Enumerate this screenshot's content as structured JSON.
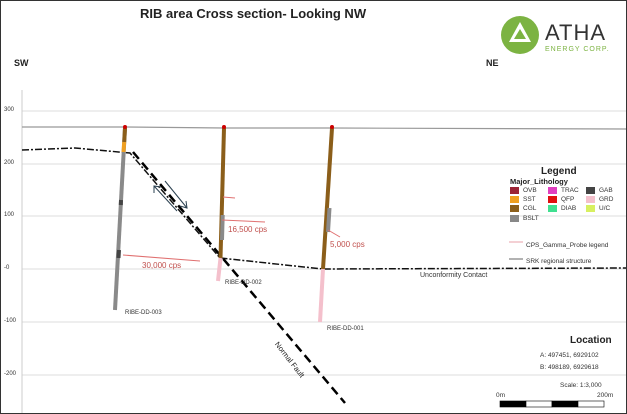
{
  "title": "RIB area Cross section- Looking NW",
  "directions": {
    "left": "SW",
    "right": "NE"
  },
  "logo": {
    "name": "ATHA",
    "sub": "ENERGY CORP.",
    "color": "#7cb342"
  },
  "y_axis_ticks": [
    "300",
    "200",
    "100",
    "-0",
    "-100",
    "-200"
  ],
  "drillholes": [
    {
      "id": "RIBE-DD-003"
    },
    {
      "id": "RIBE-DD-002"
    },
    {
      "id": "RIBE-DD-001"
    }
  ],
  "gamma_labels": [
    "30,000 cps",
    "16,500 cps",
    "5,000 cps"
  ],
  "annotations": {
    "unconformity": "Unconformity Contact",
    "fault": "Normal Fault"
  },
  "legend": {
    "title": "Legend",
    "subtitle": "Major_Lithology",
    "items": [
      {
        "label": "OVB",
        "color": "#9b2335"
      },
      {
        "label": "TRAC",
        "color": "#e040c0"
      },
      {
        "label": "GAB",
        "color": "#444444"
      },
      {
        "label": "SST",
        "color": "#f0a020"
      },
      {
        "label": "QFP",
        "color": "#e01010"
      },
      {
        "label": "GRD",
        "color": "#f4c0cc"
      },
      {
        "label": "CGL",
        "color": "#8b5e1a"
      },
      {
        "label": "DIAB",
        "color": "#40e090"
      },
      {
        "label": "U/C",
        "color": "#d8f060"
      },
      {
        "label": "BSLT",
        "color": "#888888"
      }
    ],
    "lines": [
      {
        "label": "CPS_Gamma_Probe legend",
        "color": "#e8a0a8"
      },
      {
        "label": "SRK regional structure",
        "color": "#666666"
      }
    ]
  },
  "location": {
    "title": "Location",
    "a": "A:   497451, 6929102",
    "b": "B:   498189, 6929618",
    "scale": "Scale: 1:3,000",
    "scale_start": "0m",
    "scale_end": "200m"
  }
}
